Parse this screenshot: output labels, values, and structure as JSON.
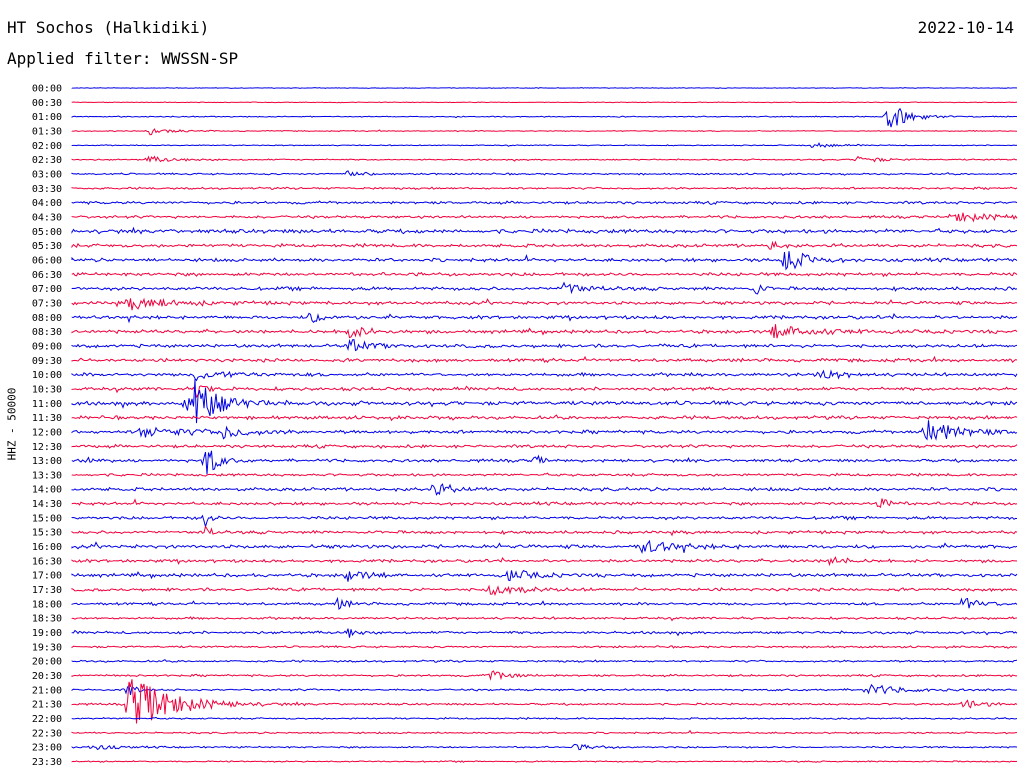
{
  "header": {
    "station": "HT Sochos (Halkidiki)",
    "date": "2022-10-14",
    "filter": "Applied filter: WWSSN-SP"
  },
  "axis": {
    "ylabel": "HHZ - 50000"
  },
  "colors": {
    "even_rows": "#0000e6",
    "odd_rows": "#f0003c",
    "background": "#ffffff"
  },
  "chart_data": {
    "type": "line",
    "description_of_rows": "helicorder traces, one per 30 minutes",
    "rows": [
      "00:00",
      "00:30",
      "01:00",
      "01:30",
      "02:00",
      "02:30",
      "03:00",
      "03:30",
      "04:00",
      "04:30",
      "05:00",
      "05:30",
      "06:00",
      "06:30",
      "07:00",
      "07:30",
      "08:00",
      "08:30",
      "09:00",
      "09:30",
      "10:00",
      "10:30",
      "11:00",
      "11:30",
      "12:00",
      "12:30",
      "13:00",
      "13:30",
      "14:00",
      "14:30",
      "15:00",
      "15:30",
      "16:00",
      "16:30",
      "17:00",
      "17:30",
      "18:00",
      "18:30",
      "19:00",
      "19:30",
      "20:00",
      "20:30",
      "21:00",
      "21:30",
      "22:00",
      "22:30",
      "23:00",
      "23:30"
    ],
    "noise_level": [
      0.2,
      0.2,
      0.3,
      0.3,
      0.3,
      0.4,
      0.5,
      0.6,
      0.8,
      0.8,
      1.2,
      1.0,
      1.0,
      1.0,
      1.0,
      1.0,
      1.0,
      1.0,
      1.0,
      1.0,
      1.0,
      1.0,
      1.2,
      1.0,
      1.0,
      0.9,
      0.9,
      0.8,
      1.0,
      0.9,
      0.9,
      0.9,
      1.1,
      0.9,
      1.0,
      0.9,
      0.8,
      0.7,
      0.8,
      0.6,
      0.6,
      0.6,
      0.6,
      0.6,
      0.5,
      0.5,
      0.5,
      0.4
    ],
    "events": [
      {
        "row": 2,
        "t": 0.86,
        "amp": 16,
        "dur": 0.02
      },
      {
        "row": 3,
        "t": 0.08,
        "amp": 4,
        "dur": 0.02
      },
      {
        "row": 4,
        "t": 0.78,
        "amp": 3,
        "dur": 0.02
      },
      {
        "row": 5,
        "t": 0.08,
        "amp": 3,
        "dur": 0.03
      },
      {
        "row": 5,
        "t": 0.83,
        "amp": 4,
        "dur": 0.02
      },
      {
        "row": 6,
        "t": 0.29,
        "amp": 3,
        "dur": 0.02
      },
      {
        "row": 9,
        "t": 0.93,
        "amp": 5,
        "dur": 0.04
      },
      {
        "row": 11,
        "t": 0.74,
        "amp": 10,
        "dur": 0.005
      },
      {
        "row": 12,
        "t": 0.75,
        "amp": 14,
        "dur": 0.02
      },
      {
        "row": 14,
        "t": 0.52,
        "amp": 6,
        "dur": 0.02
      },
      {
        "row": 14,
        "t": 0.72,
        "amp": 13,
        "dur": 0.005
      },
      {
        "row": 15,
        "t": 0.06,
        "amp": 6,
        "dur": 0.04
      },
      {
        "row": 16,
        "t": 0.25,
        "amp": 5,
        "dur": 0.02
      },
      {
        "row": 17,
        "t": 0.29,
        "amp": 7,
        "dur": 0.02
      },
      {
        "row": 17,
        "t": 0.74,
        "amp": 7,
        "dur": 0.04
      },
      {
        "row": 18,
        "t": 0.29,
        "amp": 7,
        "dur": 0.02
      },
      {
        "row": 20,
        "t": 0.13,
        "amp": 5,
        "dur": 0.03
      },
      {
        "row": 20,
        "t": 0.79,
        "amp": 5,
        "dur": 0.02
      },
      {
        "row": 21,
        "t": 0.13,
        "amp": 8,
        "dur": 0.01
      },
      {
        "row": 22,
        "t": 0.12,
        "amp": 14,
        "dur": 0.03
      },
      {
        "row": 22,
        "t": 0.13,
        "amp": 16,
        "dur": 0.02
      },
      {
        "row": 24,
        "t": 0.07,
        "amp": 5,
        "dur": 0.05
      },
      {
        "row": 24,
        "t": 0.16,
        "amp": 6,
        "dur": 0.02
      },
      {
        "row": 24,
        "t": 0.9,
        "amp": 14,
        "dur": 0.03
      },
      {
        "row": 26,
        "t": 0.01,
        "amp": 6,
        "dur": 0.01
      },
      {
        "row": 26,
        "t": 0.14,
        "amp": 22,
        "dur": 0.01
      },
      {
        "row": 26,
        "t": 0.49,
        "amp": 8,
        "dur": 0.005
      },
      {
        "row": 28,
        "t": 0.38,
        "amp": 6,
        "dur": 0.02
      },
      {
        "row": 29,
        "t": 0.85,
        "amp": 9,
        "dur": 0.01
      },
      {
        "row": 30,
        "t": 0.14,
        "amp": 12,
        "dur": 0.005
      },
      {
        "row": 31,
        "t": 0.14,
        "amp": 10,
        "dur": 0.005
      },
      {
        "row": 32,
        "t": 0.6,
        "amp": 7,
        "dur": 0.03
      },
      {
        "row": 33,
        "t": 0.8,
        "amp": 8,
        "dur": 0.01
      },
      {
        "row": 34,
        "t": 0.29,
        "amp": 6,
        "dur": 0.02
      },
      {
        "row": 34,
        "t": 0.46,
        "amp": 7,
        "dur": 0.02
      },
      {
        "row": 35,
        "t": 0.44,
        "amp": 6,
        "dur": 0.03
      },
      {
        "row": 36,
        "t": 0.28,
        "amp": 6,
        "dur": 0.01
      },
      {
        "row": 36,
        "t": 0.94,
        "amp": 6,
        "dur": 0.02
      },
      {
        "row": 38,
        "t": 0.29,
        "amp": 6,
        "dur": 0.01
      },
      {
        "row": 41,
        "t": 0.44,
        "amp": 5,
        "dur": 0.02
      },
      {
        "row": 42,
        "t": 0.84,
        "amp": 6,
        "dur": 0.03
      },
      {
        "row": 42,
        "t": 0.06,
        "amp": 10,
        "dur": 0.005
      },
      {
        "row": 43,
        "t": 0.06,
        "amp": 30,
        "dur": 0.04
      },
      {
        "row": 43,
        "t": 0.94,
        "amp": 5,
        "dur": 0.02
      },
      {
        "row": 46,
        "t": 0.02,
        "amp": 3,
        "dur": 0.02
      },
      {
        "row": 46,
        "t": 0.53,
        "amp": 3,
        "dur": 0.02
      }
    ]
  }
}
